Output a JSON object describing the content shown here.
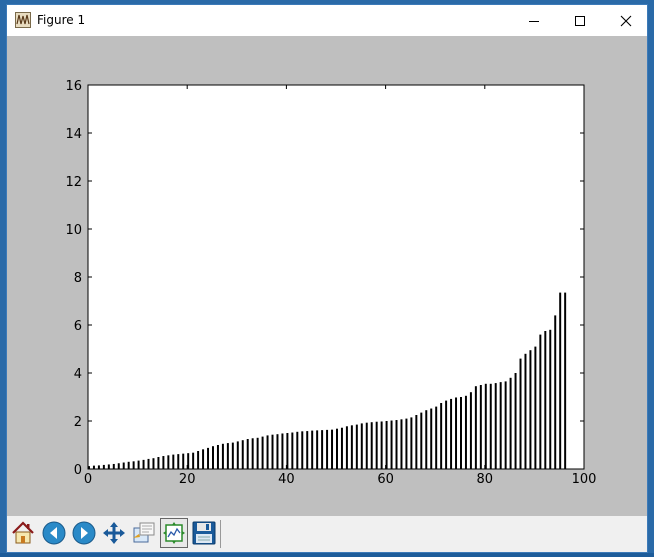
{
  "window": {
    "title": "Figure 1"
  },
  "toolbar": {
    "buttons": [
      {
        "id": "home",
        "icon": "home-icon"
      },
      {
        "id": "back",
        "icon": "back-arrow-icon"
      },
      {
        "id": "forward",
        "icon": "forward-arrow-icon"
      },
      {
        "id": "pan",
        "icon": "pan-arrows-icon"
      },
      {
        "id": "zoom",
        "icon": "zoom-rect-icon"
      },
      {
        "id": "subplots",
        "icon": "subplots-icon"
      },
      {
        "id": "save",
        "icon": "floppy-disk-icon"
      }
    ]
  },
  "colors": {
    "figure_background": "#bfbfbf",
    "plot_background": "#ffffff",
    "bar_color": "#000000"
  },
  "chart_data": {
    "type": "bar",
    "xlim": [
      0,
      100
    ],
    "ylim": [
      0,
      16
    ],
    "xticks": [
      0,
      20,
      40,
      60,
      80,
      100
    ],
    "yticks": [
      0,
      2,
      4,
      6,
      8,
      10,
      12,
      14,
      16
    ],
    "bar_width": 0.4,
    "grid": false,
    "x": [
      0,
      1,
      2,
      3,
      4,
      5,
      6,
      7,
      8,
      9,
      10,
      11,
      12,
      13,
      14,
      15,
      16,
      17,
      18,
      19,
      20,
      21,
      22,
      23,
      24,
      25,
      26,
      27,
      28,
      29,
      30,
      31,
      32,
      33,
      34,
      35,
      36,
      37,
      38,
      39,
      40,
      41,
      42,
      43,
      44,
      45,
      46,
      47,
      48,
      49,
      50,
      51,
      52,
      53,
      54,
      55,
      56,
      57,
      58,
      59,
      60,
      61,
      62,
      63,
      64,
      65,
      66,
      67,
      68,
      69,
      70,
      71,
      72,
      73,
      74,
      75,
      76,
      77,
      78,
      79,
      80,
      81,
      82,
      83,
      84,
      85,
      86,
      87,
      88,
      89,
      90,
      91,
      92,
      93,
      94,
      95,
      96
    ],
    "values": [
      0.12,
      0.14,
      0.15,
      0.17,
      0.19,
      0.21,
      0.24,
      0.27,
      0.3,
      0.32,
      0.35,
      0.38,
      0.42,
      0.45,
      0.5,
      0.54,
      0.57,
      0.6,
      0.62,
      0.64,
      0.66,
      0.68,
      0.75,
      0.82,
      0.88,
      0.95,
      1.0,
      1.05,
      1.08,
      1.1,
      1.15,
      1.2,
      1.25,
      1.28,
      1.3,
      1.35,
      1.4,
      1.43,
      1.45,
      1.48,
      1.5,
      1.52,
      1.55,
      1.57,
      1.58,
      1.6,
      1.61,
      1.62,
      1.63,
      1.64,
      1.68,
      1.72,
      1.78,
      1.82,
      1.85,
      1.9,
      1.93,
      1.95,
      1.97,
      1.98,
      2.0,
      2.02,
      2.04,
      2.07,
      2.1,
      2.15,
      2.25,
      2.35,
      2.45,
      2.52,
      2.6,
      2.75,
      2.85,
      2.92,
      2.98,
      3.0,
      3.05,
      3.2,
      3.45,
      3.5,
      3.55,
      3.55,
      3.58,
      3.62,
      3.65,
      3.8,
      4.0,
      4.6,
      4.8,
      4.95,
      5.1,
      5.6,
      5.75,
      5.8,
      6.4,
      7.35,
      7.35
    ]
  }
}
